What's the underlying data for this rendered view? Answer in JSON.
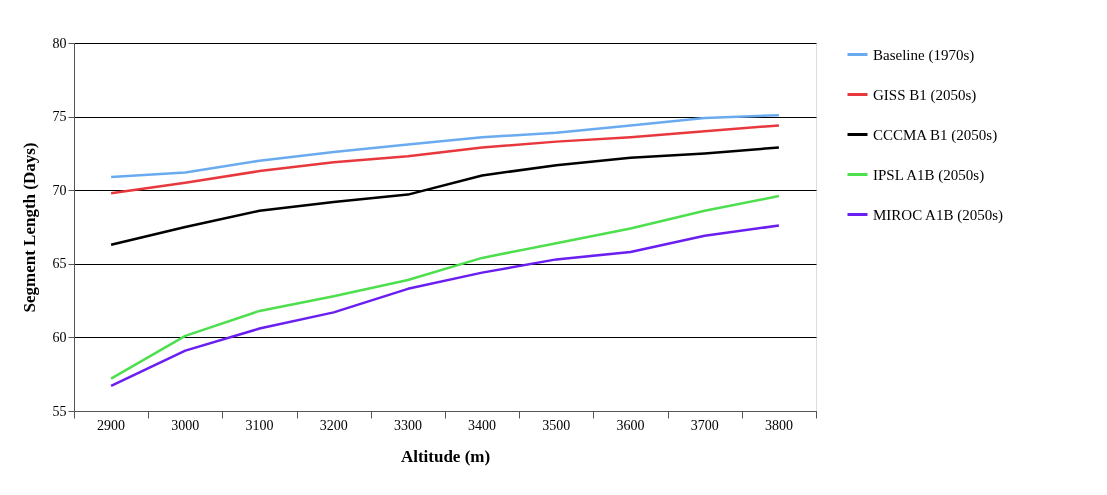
{
  "chart_data": {
    "type": "line",
    "xlabel": "Altitude (m)",
    "ylabel": "Segment Length (Days)",
    "categories": [
      "2900",
      "3000",
      "3100",
      "3200",
      "3300",
      "3400",
      "3500",
      "3600",
      "3700",
      "3800"
    ],
    "series": [
      {
        "name": "Baseline (1970s)",
        "color": "#6aabf0",
        "values": [
          70.9,
          71.2,
          72.0,
          72.6,
          73.1,
          73.6,
          73.9,
          74.4,
          74.9,
          75.1
        ]
      },
      {
        "name": "GISS B1 (2050s)",
        "color": "#e8383d",
        "values": [
          69.8,
          70.5,
          71.3,
          71.9,
          72.3,
          72.9,
          73.3,
          73.6,
          74.0,
          74.4
        ]
      },
      {
        "name": "CCCMA B1 (2050s)",
        "color": "#000000",
        "values": [
          66.3,
          67.5,
          68.6,
          69.2,
          69.7,
          71.0,
          71.7,
          72.2,
          72.5,
          72.9
        ]
      },
      {
        "name": "IPSL A1B (2050s)",
        "color": "#4ddf4d",
        "values": [
          57.2,
          60.1,
          61.8,
          62.8,
          63.9,
          65.4,
          66.4,
          67.4,
          68.6,
          69.6
        ]
      },
      {
        "name": "MIROC A1B (2050s)",
        "color": "#6a1ef0",
        "values": [
          56.7,
          59.1,
          60.6,
          61.7,
          63.3,
          64.4,
          65.3,
          65.8,
          66.9,
          67.6
        ]
      }
    ],
    "ylim": [
      55,
      80
    ],
    "yticks": [
      55,
      60,
      65,
      70,
      75,
      80
    ],
    "grid": "y",
    "legend": "right",
    "marker": "none",
    "line_style": "solid"
  }
}
